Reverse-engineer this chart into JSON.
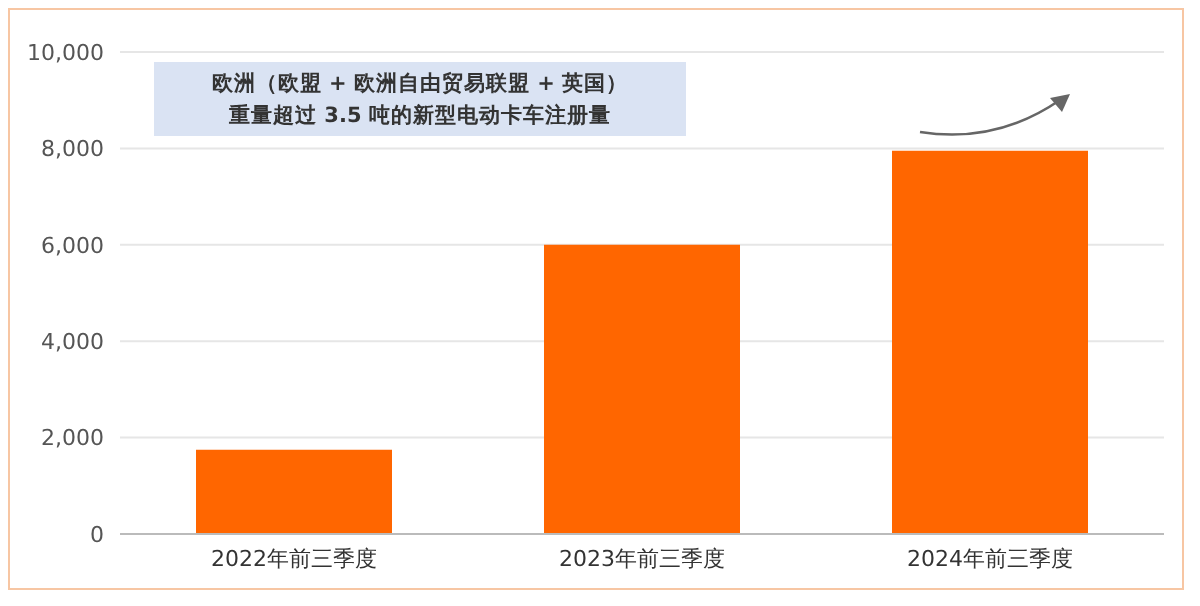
{
  "chart_data": {
    "type": "bar",
    "title": "欧洲（欧盟 + 欧洲自由贸易联盟 + 英国）",
    "subtitle": "重量超过 3.5 吨的新型电动卡车注册量",
    "categories": [
      "2022年前三季度",
      "2023年前三季度",
      "2024年前三季度"
    ],
    "values": [
      1750,
      6000,
      7950
    ],
    "color": "#ff6600",
    "ylim": [
      0,
      10000
    ],
    "yticks": [
      {
        "value": 0,
        "label": "0"
      },
      {
        "value": 2000,
        "label": "2,000"
      },
      {
        "value": 4000,
        "label": "4,000"
      },
      {
        "value": 6000,
        "label": "6,000"
      },
      {
        "value": 8000,
        "label": "8,000"
      },
      {
        "value": 10000,
        "label": "10,000"
      }
    ],
    "grid": "y"
  }
}
